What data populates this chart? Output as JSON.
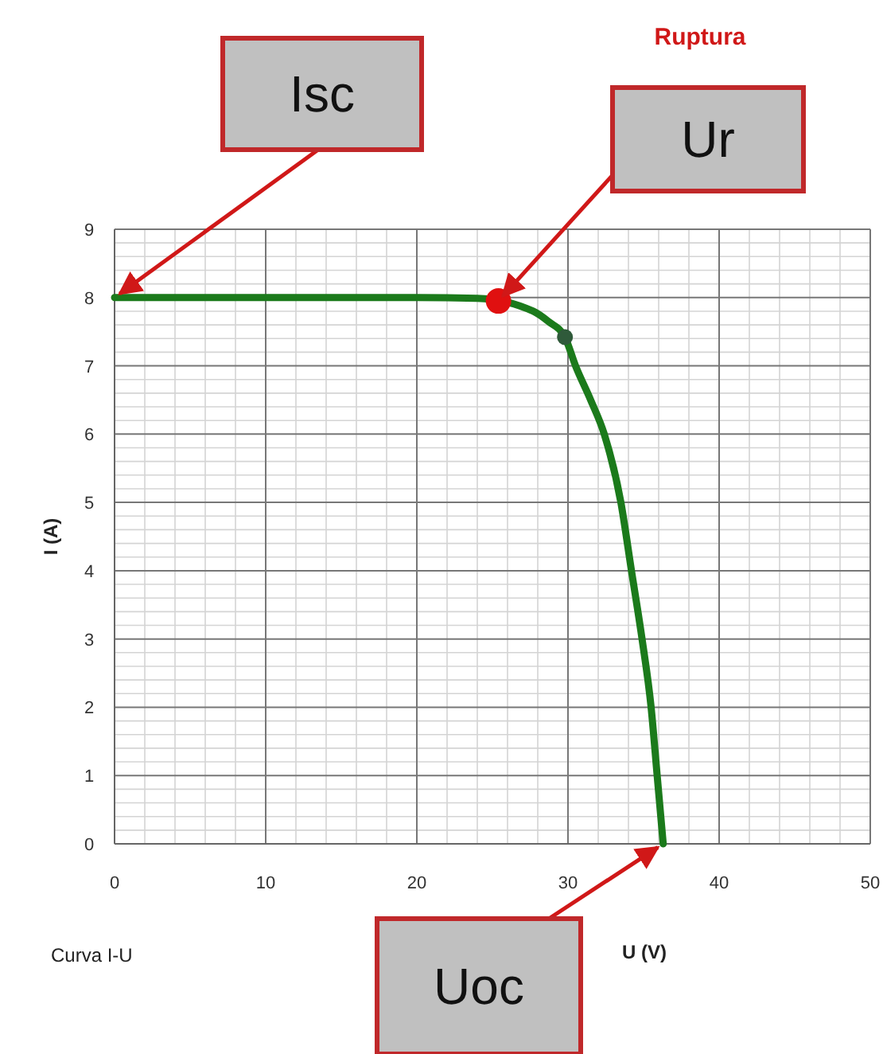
{
  "chart_data": {
    "type": "line",
    "xlabel": "U (V)",
    "ylabel": "I (A)",
    "xlim": [
      0,
      50
    ],
    "xticks": [
      0,
      10,
      20,
      30,
      40,
      50
    ],
    "ylim": [
      0,
      9
    ],
    "yticks": [
      0,
      1,
      2,
      3,
      4,
      5,
      6,
      7,
      8,
      9
    ],
    "grid": true,
    "series": [
      {
        "type": "line",
        "color": "#1b7a1b",
        "marker": "none",
        "x": [
          0,
          10,
          20,
          24,
          27.7,
          28.7,
          29.8,
          30.5,
          31.5,
          32.4,
          33.5,
          34.2,
          34.9,
          35.5,
          35.9,
          36.3
        ],
        "values": [
          8,
          8,
          8,
          7.99,
          7.8,
          7.65,
          7.42,
          7,
          6.5,
          6,
          5,
          4,
          3,
          2,
          1,
          0
        ]
      },
      {
        "type": "scatter",
        "color": "#e01010",
        "marker": "circle",
        "x": [
          25.4
        ],
        "values": [
          7.95
        ]
      },
      {
        "type": "scatter",
        "color": "#2f5a3a",
        "marker": "circle",
        "x": [
          29.8
        ],
        "values": [
          7.42
        ]
      }
    ],
    "annotations": [
      {
        "text": "Isc",
        "x": 0,
        "y": 8
      },
      {
        "text": "Ur",
        "x": 25.4,
        "y": 7.95
      },
      {
        "text": "Uoc",
        "x": 36.3,
        "y": 0
      },
      "Ruptura",
      "Curva  I-U"
    ]
  }
}
